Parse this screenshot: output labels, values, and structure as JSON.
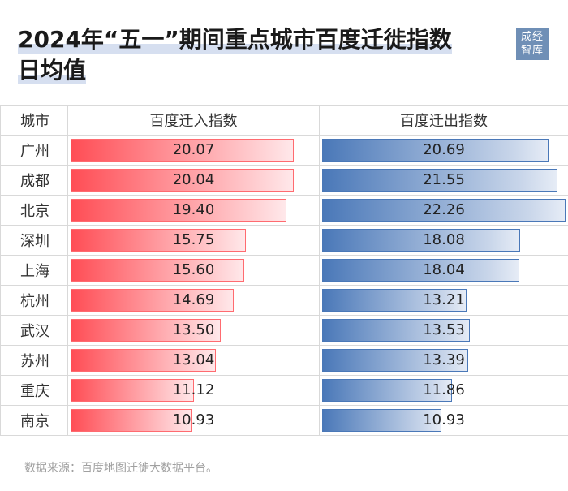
{
  "title_line1": "2024年“五一”期间重点城市百度迁徙指数",
  "title_line2": "日均值",
  "logo_text": [
    "成经",
    "智库"
  ],
  "source": "数据来源：百度地图迁徙大数据平台。",
  "chart_data": {
    "type": "table",
    "headers": [
      "城市",
      "百度迁入指数",
      "百度迁出指数"
    ],
    "categories": [
      "广州",
      "成都",
      "北京",
      "深圳",
      "上海",
      "杭州",
      "武汉",
      "苏州",
      "重庆",
      "南京"
    ],
    "series": [
      {
        "name": "百度迁入指数",
        "values": [
          20.07,
          20.04,
          19.4,
          15.75,
          15.6,
          14.69,
          13.5,
          13.04,
          11.12,
          10.93
        ],
        "color": "#ff4d55"
      },
      {
        "name": "百度迁出指数",
        "values": [
          20.69,
          21.55,
          22.26,
          18.08,
          18.04,
          13.21,
          13.53,
          13.39,
          11.86,
          10.93
        ],
        "color": "#4a78b8"
      }
    ],
    "value_labels": {
      "in": [
        "20.07",
        "20.04",
        "19.40",
        "15.75",
        "15.60",
        "14.69",
        "13.50",
        "13.04",
        "11.12",
        "10.93"
      ],
      "out": [
        "20.69",
        "21.55",
        "22.26",
        "18.08",
        "18.04",
        "13.21",
        "13.53",
        "13.39",
        "11.86",
        "10.93"
      ]
    },
    "bar_scale_max": 22.26
  }
}
